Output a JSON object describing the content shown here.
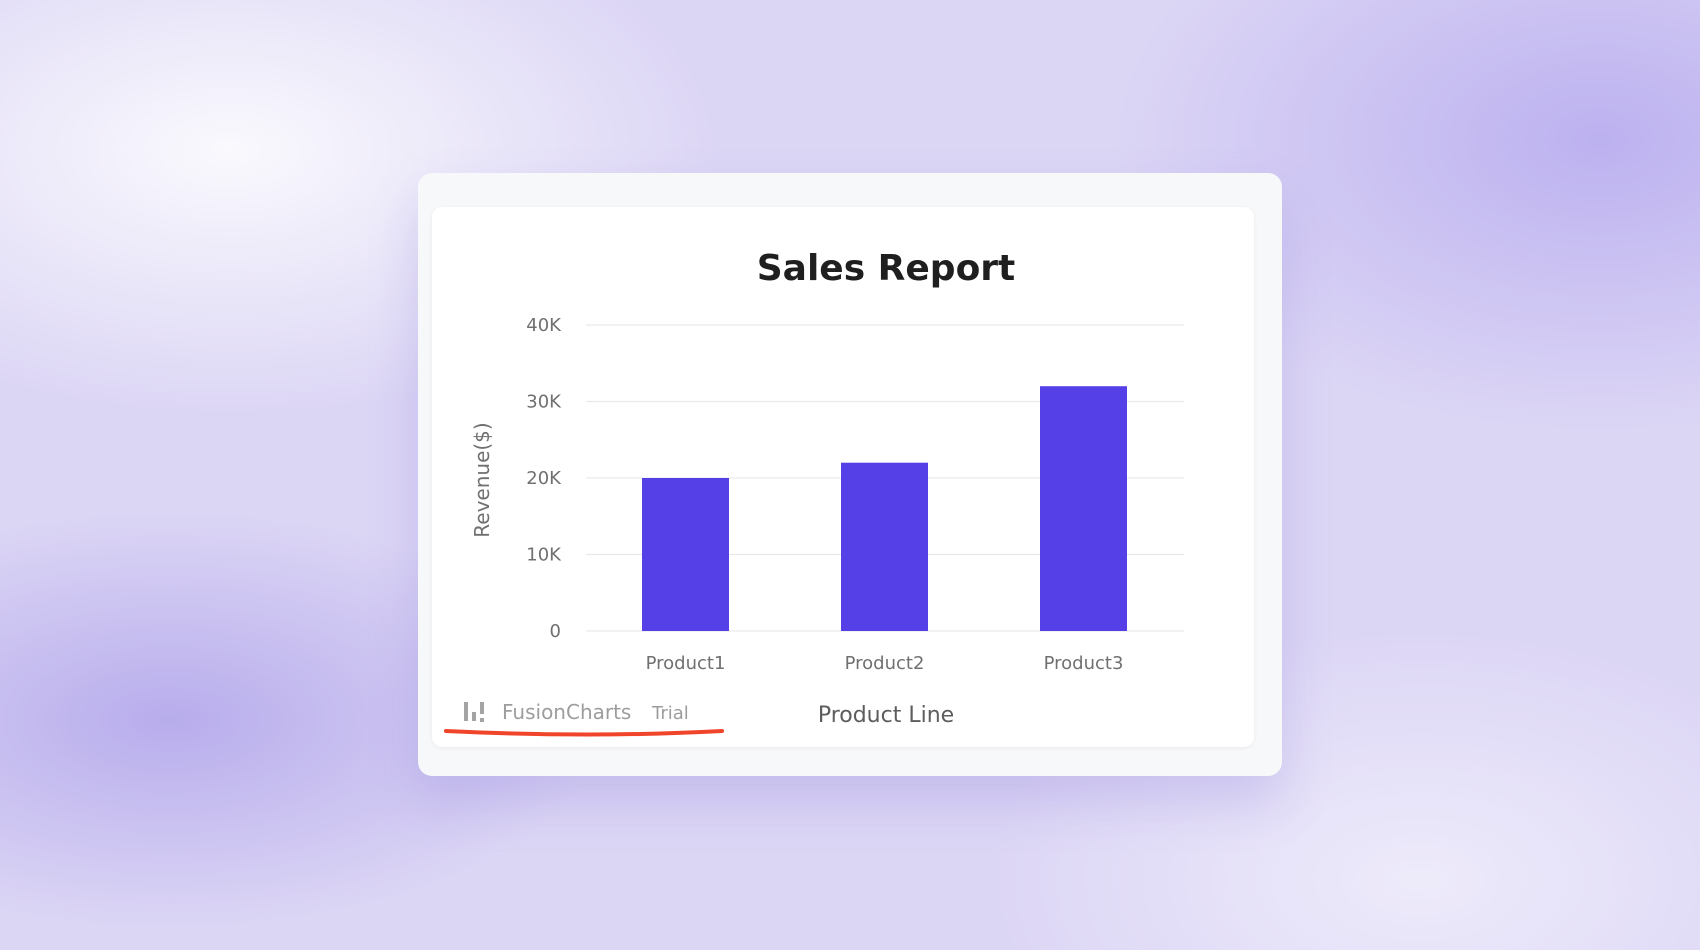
{
  "chart_data": {
    "type": "bar",
    "title": "Sales Report",
    "xlabel": "Product Line",
    "ylabel": "Revenue($)",
    "categories": [
      "Product1",
      "Product2",
      "Product3"
    ],
    "values": [
      20000,
      22000,
      32000
    ],
    "ylim": [
      0,
      40000
    ],
    "yticks": [
      0,
      10000,
      20000,
      30000,
      40000
    ],
    "ytick_labels": [
      "0",
      "10K",
      "20K",
      "30K",
      "40K"
    ],
    "grid": true,
    "bar_color": "#5540e8"
  },
  "watermark": {
    "brand": "FusionCharts",
    "suffix": "Trial",
    "icon": "bar-chart-icon",
    "underline_color": "#f0452a"
  }
}
